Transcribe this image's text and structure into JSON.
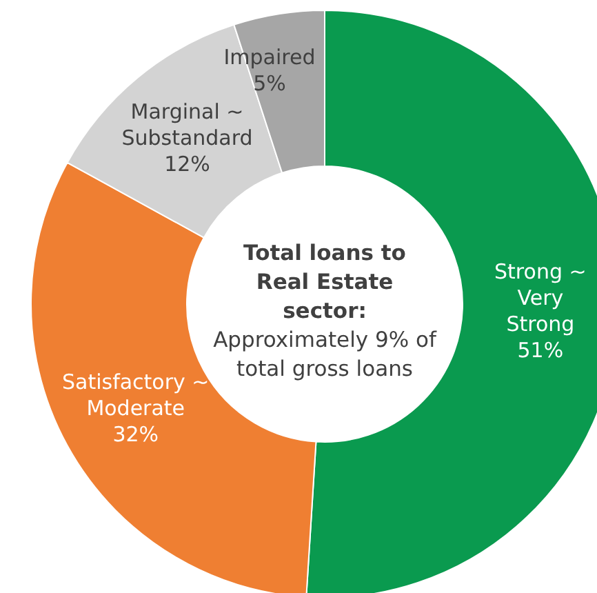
{
  "chart_data": {
    "type": "donut",
    "title": "Total loans to Real Estate sector:",
    "annotations": [
      "Approximately 9% of total gross loans"
    ],
    "categories": [
      "Strong ~ Very Strong",
      "Satisfactory ~ Moderate",
      "Marginal ~ Substandard",
      "Impaired"
    ],
    "values": [
      51,
      32,
      12,
      5
    ],
    "colors": [
      "#0a9a4f",
      "#ef7f32",
      "#d3d3d3",
      "#a6a6a6"
    ],
    "value_labels": [
      "51%",
      "32%",
      "12%",
      "5%"
    ]
  }
}
